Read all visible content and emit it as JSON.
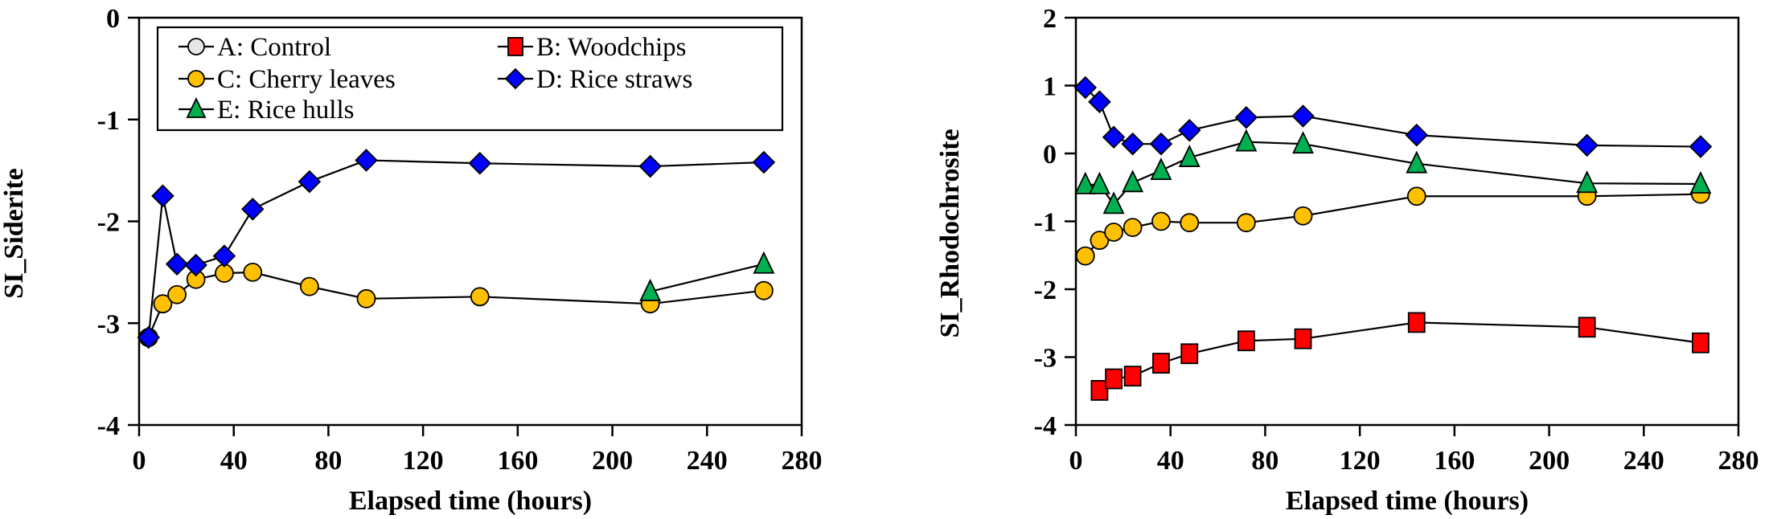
{
  "series_styles": {
    "A": {
      "label": "A: Control",
      "marker": "circle",
      "color": "#e6e6e6"
    },
    "B": {
      "label": "B: Woodchips",
      "marker": "square",
      "color": "#ff0000"
    },
    "C": {
      "label": "C: Cherry leaves",
      "marker": "circle",
      "color": "#ffc000"
    },
    "D": {
      "label": "D: Rice straws",
      "marker": "diamond",
      "color": "#0000ff"
    },
    "E": {
      "label": "E: Rice hulls",
      "marker": "triangle",
      "color": "#00b050"
    }
  },
  "legend_order": [
    "A",
    "B",
    "C",
    "D",
    "E"
  ],
  "chart_data": [
    {
      "type": "line",
      "title": "",
      "xlabel": "Elapsed time (hours)",
      "ylabel": "SI_Siderite",
      "xlim": [
        0,
        280
      ],
      "ylim": [
        -4,
        0
      ],
      "xticks": [
        0,
        40,
        80,
        120,
        160,
        200,
        240,
        280
      ],
      "yticks": [
        0,
        -1,
        -2,
        -3,
        -4
      ],
      "grid": false,
      "legend": "top",
      "show_legend": true,
      "series": [
        {
          "key": "A",
          "name": "A: Control",
          "x": [
            4
          ],
          "y": [
            -3.14
          ]
        },
        {
          "key": "C",
          "name": "C: Cherry leaves",
          "x": [
            4,
            10,
            16,
            24,
            36,
            48,
            72,
            96,
            144,
            216,
            264
          ],
          "y": [
            -3.14,
            -2.81,
            -2.72,
            -2.57,
            -2.51,
            -2.5,
            -2.64,
            -2.76,
            -2.74,
            -2.81,
            -2.68
          ]
        },
        {
          "key": "E",
          "name": "E: Rice hulls",
          "x": [
            216,
            264
          ],
          "y": [
            -2.69,
            -2.42
          ]
        },
        {
          "key": "D",
          "name": "D: Rice straws",
          "x": [
            4,
            10,
            16,
            24,
            36,
            48,
            72,
            96,
            144,
            216,
            264
          ],
          "y": [
            -3.14,
            -1.75,
            -2.42,
            -2.43,
            -2.34,
            -1.88,
            -1.61,
            -1.4,
            -1.43,
            -1.46,
            -1.42
          ]
        }
      ]
    },
    {
      "type": "line",
      "title": "",
      "xlabel": "Elapsed time (hours)",
      "ylabel": "SI_Rhodochrosite",
      "xlim": [
        0,
        280
      ],
      "ylim": [
        -4,
        2
      ],
      "xticks": [
        0,
        40,
        80,
        120,
        160,
        200,
        240,
        280
      ],
      "yticks": [
        2,
        1,
        0,
        -1,
        -2,
        -3,
        -4
      ],
      "grid": false,
      "legend": "none",
      "show_legend": false,
      "series": [
        {
          "key": "B",
          "name": "B: Woodchips",
          "x": [
            10,
            16,
            24,
            36,
            48,
            72,
            96,
            144,
            216,
            264
          ],
          "y": [
            -3.49,
            -3.32,
            -3.28,
            -3.09,
            -2.95,
            -2.76,
            -2.73,
            -2.49,
            -2.56,
            -2.79
          ]
        },
        {
          "key": "C",
          "name": "C: Cherry leaves",
          "x": [
            4,
            10,
            16,
            24,
            36,
            48,
            72,
            96,
            144,
            216,
            264
          ],
          "y": [
            -1.51,
            -1.28,
            -1.16,
            -1.09,
            -1.0,
            -1.02,
            -1.02,
            -0.92,
            -0.63,
            -0.63,
            -0.6
          ]
        },
        {
          "key": "E",
          "name": "E: Rice hulls",
          "x": [
            4,
            10,
            16,
            24,
            36,
            48,
            72,
            96,
            144,
            216,
            264
          ],
          "y": [
            -0.46,
            -0.46,
            -0.75,
            -0.43,
            -0.25,
            -0.06,
            0.17,
            0.14,
            -0.15,
            -0.44,
            -0.45
          ]
        },
        {
          "key": "D",
          "name": "D: Rice straws",
          "x": [
            4,
            10,
            16,
            24,
            36,
            48,
            72,
            96,
            144,
            216,
            264
          ],
          "y": [
            0.97,
            0.76,
            0.24,
            0.14,
            0.14,
            0.34,
            0.53,
            0.55,
            0.27,
            0.12,
            0.1
          ]
        }
      ]
    }
  ]
}
